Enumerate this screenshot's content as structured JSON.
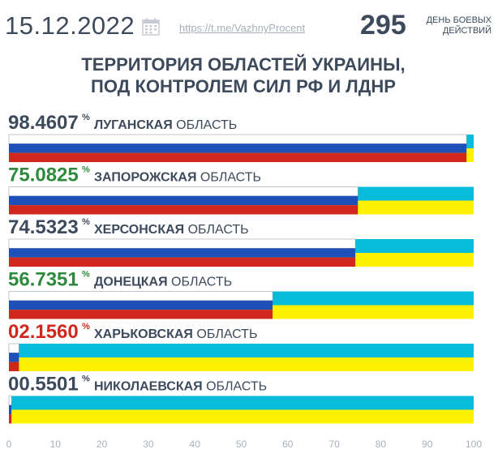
{
  "header": {
    "date": "15.12.2022",
    "link": "https://t.me/VazhnyProcent",
    "day_count": "295",
    "day_label_1": "ДЕНЬ БОЕВЫХ",
    "day_label_2": "ДЕЙСТВИЙ"
  },
  "title": {
    "line1": "ТЕРРИТОРИЯ ОБЛАСТЕЙ УКРАИНЫ,",
    "line2": "ПОД КОНТРОЛЕМ СИЛ РФ И ЛДНР"
  },
  "colors": {
    "text": "#3d4a5c",
    "green": "#2e8b3e",
    "red_text": "#d0281e",
    "ru_white": "#ffffff",
    "ru_blue": "#1f4fb8",
    "ru_red": "#d0281e",
    "ua_blue": "#08bcd9",
    "ua_yellow": "#fff100",
    "axis": "#a8b0bb"
  },
  "chart_data": {
    "type": "bar",
    "orientation": "horizontal",
    "categories": [
      "ЛУГАНСКАЯ ОБЛАСТЬ",
      "ЗАПОРОЖСКАЯ ОБЛАСТЬ",
      "ХЕРСОНСКАЯ ОБЛАСТЬ",
      "ДОНЕЦКАЯ ОБЛАСТЬ",
      "ХАРЬКОВСКАЯ ОБЛАСТЬ",
      "НИКОЛАЕВСКАЯ ОБЛАСТЬ"
    ],
    "rows": [
      {
        "value_text": "98.4607",
        "name_bold": "ЛУГАНСКАЯ",
        "name_rest": " ОБЛАСТЬ",
        "value": 98.4607,
        "value_color": "#3d4a5c"
      },
      {
        "value_text": "75.0825",
        "name_bold": "ЗАПОРОЖСКАЯ",
        "name_rest": " ОБЛАСТЬ",
        "value": 75.0825,
        "value_color": "#2e8b3e"
      },
      {
        "value_text": "74.5323",
        "name_bold": "ХЕРСОНСКАЯ",
        "name_rest": " ОБЛАСТЬ",
        "value": 74.5323,
        "value_color": "#3d4a5c"
      },
      {
        "value_text": "56.7351",
        "name_bold": "ДОНЕЦКАЯ",
        "name_rest": " ОБЛАСТЬ",
        "value": 56.7351,
        "value_color": "#2e8b3e"
      },
      {
        "value_text": "02.1560",
        "name_bold": "ХАРЬКОВСКАЯ",
        "name_rest": " ОБЛАСТЬ",
        "value": 2.156,
        "value_color": "#d0281e"
      },
      {
        "value_text": "00.5501",
        "name_bold": "НИКОЛАЕВСКАЯ",
        "name_rest": " ОБЛАСТЬ",
        "value": 0.5501,
        "value_color": "#3d4a5c"
      }
    ],
    "unit": "%",
    "xlim": [
      0,
      100
    ],
    "xticks": [
      0,
      10,
      20,
      30,
      40,
      50,
      60,
      70,
      80,
      90,
      100
    ],
    "grid": false,
    "legend": "none"
  }
}
